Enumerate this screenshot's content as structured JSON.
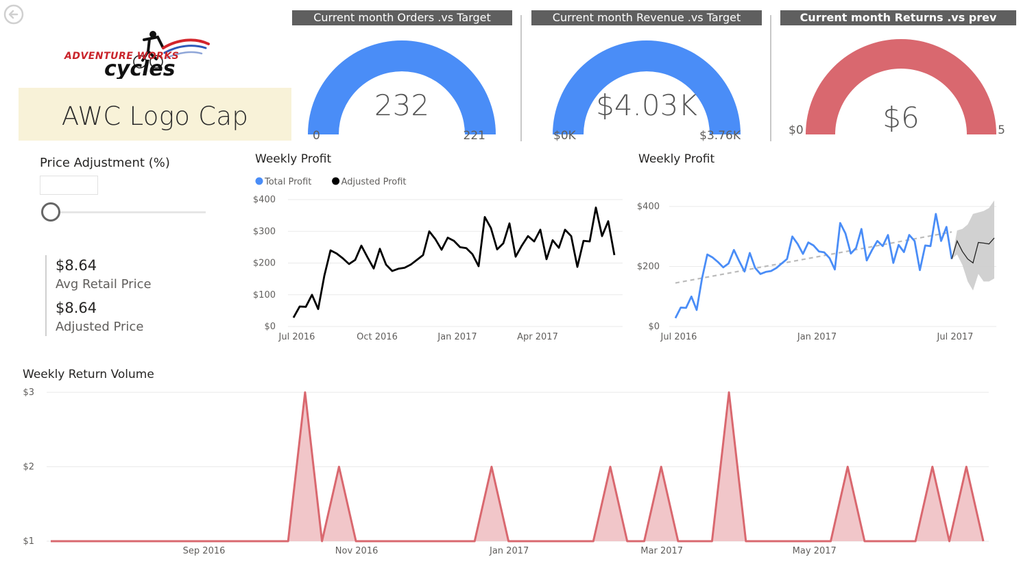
{
  "header": {
    "product_name": "AWC Logo Cap"
  },
  "logo": {
    "line1": "ADVENTURE WORKS",
    "line2": "cycles"
  },
  "gauges": [
    {
      "title": "Current month Orders .vs Target",
      "value_label": "232",
      "value": 232,
      "min": 0,
      "max": 221,
      "min_label": "0",
      "max_label": "221",
      "color": "#4a8df7",
      "title_bold": false
    },
    {
      "title": "Current month Revenue .vs Target",
      "value_label": "$4.03K",
      "value": 4.03,
      "min": 0,
      "max": 3.76,
      "min_label": "$0K",
      "max_label": "$3.76K",
      "color": "#4a8df7",
      "title_bold": false
    },
    {
      "title": "Current month Returns .vs prev Mounth",
      "value_label": "$6",
      "value": 6,
      "min": 0,
      "max": 5,
      "min_label": "$0",
      "max_label": "5",
      "color": "#d9686f",
      "title_bold": true
    }
  ],
  "slicer": {
    "label": "Price Adjustment (%)",
    "value": 0
  },
  "cards": [
    {
      "value": "$8.64",
      "label": "Avg Retail Price"
    },
    {
      "value": "$8.64",
      "label": "Adjusted Price"
    }
  ],
  "chart_data": [
    {
      "type": "line",
      "title": "Weekly Profit",
      "legend": {
        "position": "top-left",
        "entries": [
          {
            "name": "Total Profit",
            "color": "#4a8df7"
          },
          {
            "name": "Adjusted Profit",
            "color": "#000000"
          }
        ]
      },
      "y_ticks": [
        "$0",
        "$100",
        "$200",
        "$300",
        "$400"
      ],
      "ylim": [
        0,
        400
      ],
      "x_ticks": [
        {
          "label": "Jul 2016",
          "index": 1
        },
        {
          "label": "Oct 2016",
          "index": 14
        },
        {
          "label": "Jan 2017",
          "index": 27
        },
        {
          "label": "Apr 2017",
          "index": 40
        }
      ],
      "series": [
        {
          "name": "Adjusted Profit",
          "color": "#000000",
          "values": [
            28,
            63,
            62,
            100,
            55,
            160,
            240,
            230,
            215,
            197,
            210,
            255,
            218,
            183,
            245,
            195,
            175,
            182,
            185,
            195,
            210,
            225,
            300,
            275,
            242,
            280,
            270,
            250,
            247,
            228,
            190,
            345,
            310,
            243,
            262,
            325,
            220,
            255,
            285,
            268,
            305,
            212,
            272,
            248,
            305,
            285,
            188,
            270,
            268,
            375,
            285,
            332,
            225
          ]
        }
      ],
      "grid": true
    },
    {
      "type": "line",
      "title": "Weekly Profit",
      "y_ticks": [
        "$0",
        "$200",
        "$400"
      ],
      "ylim": [
        0,
        400
      ],
      "x_ticks": [
        {
          "label": "Jul 2016",
          "index": 0
        },
        {
          "label": "Jan 2017",
          "index": 26
        },
        {
          "label": "Jul 2017",
          "index": 52
        }
      ],
      "series": [
        {
          "name": "Total Profit",
          "color": "#4a8df7",
          "values": [
            28,
            63,
            62,
            100,
            55,
            160,
            240,
            230,
            215,
            197,
            210,
            255,
            218,
            183,
            245,
            195,
            175,
            182,
            185,
            195,
            210,
            225,
            300,
            275,
            242,
            280,
            270,
            250,
            247,
            228,
            190,
            345,
            310,
            243,
            262,
            325,
            220,
            255,
            285,
            268,
            305,
            212,
            272,
            248,
            305,
            285,
            188,
            270,
            268,
            375,
            285,
            332,
            225
          ]
        },
        {
          "name": "Forecast",
          "color": "#222222",
          "start_index": 52,
          "values": [
            225,
            285,
            250,
            225,
            212,
            280,
            278,
            275,
            295
          ]
        }
      ],
      "trend": {
        "color": "#bbbbbb",
        "start": 145,
        "end": 315
      },
      "forecast_band": {
        "start_index": 52,
        "upper": [
          225,
          320,
          325,
          340,
          375,
          380,
          385,
          395,
          420
        ],
        "lower": [
          225,
          240,
          205,
          150,
          120,
          175,
          150,
          150,
          160
        ]
      },
      "grid": true
    },
    {
      "type": "area",
      "title": "Weekly Return Volume",
      "color": "#d9686f",
      "fill": "#f1c6c9",
      "y_ticks": [
        "$1",
        "$2",
        "$3"
      ],
      "ylim": [
        1,
        3
      ],
      "x_ticks": [
        {
          "label": "Sep 2016",
          "index": 9
        },
        {
          "label": "Nov 2016",
          "index": 18
        },
        {
          "label": "Jan 2017",
          "index": 27
        },
        {
          "label": "Mar 2017",
          "index": 36
        },
        {
          "label": "May 2017",
          "index": 45
        }
      ],
      "values": [
        1,
        1,
        1,
        1,
        1,
        1,
        1,
        1,
        1,
        1,
        1,
        1,
        1,
        1,
        1,
        3,
        1,
        2,
        1,
        1,
        1,
        1,
        1,
        1,
        1,
        1,
        2,
        1,
        1,
        1,
        1,
        1,
        1,
        2,
        1,
        1,
        2,
        1,
        1,
        1,
        3,
        1,
        1,
        1,
        1,
        1,
        1,
        2,
        1,
        1,
        1,
        1,
        2,
        1,
        2,
        1
      ],
      "grid": true
    }
  ]
}
